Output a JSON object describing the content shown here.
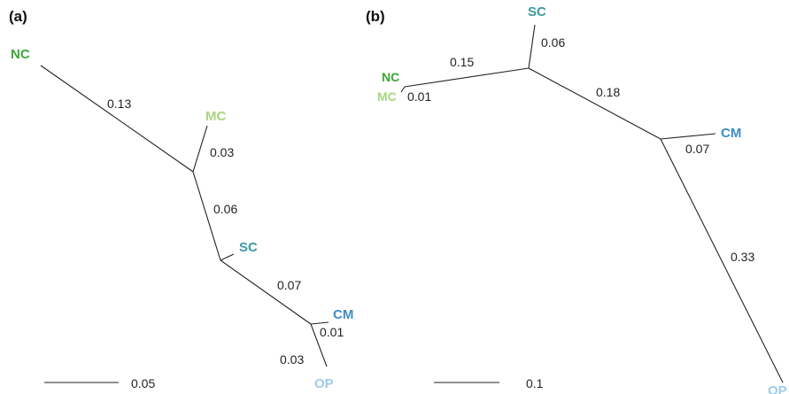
{
  "colors": {
    "nc": "#3aa535",
    "mc": "#a8d580",
    "sc": "#3b9aa0",
    "cm": "#3b8cc7",
    "op": "#9ecbea"
  },
  "panel_a": {
    "label": "(a)",
    "taxa": {
      "nc": "NC",
      "mc": "MC",
      "sc": "SC",
      "cm": "CM",
      "op": "OP"
    },
    "branch_lengths": {
      "nc": "0.13",
      "mc": "0.03",
      "internal": "0.06",
      "sc_cm": "0.07",
      "cm": "0.01",
      "op": "0.03"
    },
    "scale_bar": "0.05"
  },
  "panel_b": {
    "label": "(b)",
    "taxa": {
      "nc": "NC",
      "mc": "MC",
      "sc": "SC",
      "cm": "CM",
      "op": "OP"
    },
    "branch_lengths": {
      "nc_mc": "0.15",
      "sc": "0.06",
      "mc": "0.01",
      "internal": "0.18",
      "cm": "0.07",
      "op": "0.33"
    },
    "scale_bar": "0.1"
  }
}
